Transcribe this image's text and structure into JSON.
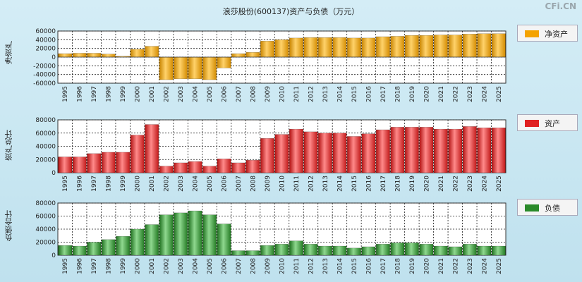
{
  "title": "浪莎股份(600137)资产与负债（万元）",
  "brand": "CFi.CN",
  "colors": {
    "net_assets": "#f4a300",
    "assets": "#e02020",
    "liabilities": "#2a8a2a"
  },
  "chart_data": [
    {
      "type": "bar",
      "series_name": "净资产",
      "ylabel": "净资产",
      "ylim": [
        -60000,
        60000
      ],
      "yticks": [
        -60000,
        -40000,
        -20000,
        0,
        20000,
        40000,
        60000
      ],
      "ytick_labels": [
        "-60000",
        "-40000",
        "-20000",
        "0",
        "20000",
        "40000",
        "60000"
      ],
      "categories": [
        "1995",
        "1996",
        "1997",
        "1998",
        "1999",
        "2000",
        "2001",
        "2002",
        "2003",
        "2004",
        "2005",
        "2006",
        "2007",
        "2008",
        "2009",
        "2010",
        "2011",
        "2012",
        "2013",
        "2014",
        "2015",
        "2016",
        "2017",
        "2018",
        "2019",
        "2020",
        "2021",
        "2022",
        "2023",
        "2024",
        "2025"
      ],
      "values": [
        8000,
        9000,
        9000,
        7000,
        2000,
        18000,
        25000,
        -52000,
        -50000,
        -50000,
        -52000,
        -25000,
        8000,
        11000,
        37000,
        40000,
        44000,
        45000,
        45000,
        45000,
        44000,
        44000,
        47000,
        48000,
        50000,
        50000,
        51000,
        51000,
        53000,
        54000,
        54000
      ]
    },
    {
      "type": "bar",
      "series_name": "资产",
      "ylabel": "资产总计",
      "ylim": [
        0,
        80000
      ],
      "yticks": [
        0,
        20000,
        40000,
        60000,
        80000
      ],
      "ytick_labels": [
        "0",
        "20000",
        "40000",
        "60000",
        "80000"
      ],
      "categories": [
        "1995",
        "1996",
        "1997",
        "1998",
        "1999",
        "2000",
        "2001",
        "2002",
        "2003",
        "2004",
        "2005",
        "2006",
        "2007",
        "2008",
        "2009",
        "2010",
        "2011",
        "2012",
        "2013",
        "2014",
        "2015",
        "2016",
        "2017",
        "2018",
        "2019",
        "2020",
        "2021",
        "2022",
        "2023",
        "2024",
        "2025"
      ],
      "values": [
        24000,
        24000,
        29000,
        31000,
        31000,
        57000,
        73000,
        10000,
        15000,
        17000,
        10000,
        21000,
        15000,
        19000,
        52000,
        58000,
        66000,
        62000,
        60000,
        60000,
        55000,
        59000,
        65000,
        69000,
        69000,
        69000,
        66000,
        66000,
        70000,
        68000,
        68000
      ]
    },
    {
      "type": "bar",
      "series_name": "负债",
      "ylabel": "负债合计",
      "ylim": [
        0,
        80000
      ],
      "yticks": [
        0,
        20000,
        40000,
        60000,
        80000
      ],
      "ytick_labels": [
        "0",
        "20000",
        "40000",
        "60000",
        "80000"
      ],
      "categories": [
        "1995",
        "1996",
        "1997",
        "1998",
        "1999",
        "2000",
        "2001",
        "2002",
        "2003",
        "2004",
        "2005",
        "2006",
        "2007",
        "2008",
        "2009",
        "2010",
        "2011",
        "2012",
        "2013",
        "2014",
        "2015",
        "2016",
        "2017",
        "2018",
        "2019",
        "2020",
        "2021",
        "2022",
        "2023",
        "2024",
        "2025"
      ],
      "values": [
        15000,
        14000,
        20000,
        24000,
        29000,
        40000,
        47000,
        62000,
        65000,
        68000,
        62000,
        48000,
        7000,
        7000,
        15000,
        17000,
        22000,
        17000,
        14000,
        14000,
        11000,
        13000,
        17000,
        19000,
        19000,
        17000,
        14000,
        13000,
        17000,
        14000,
        14000
      ]
    }
  ]
}
